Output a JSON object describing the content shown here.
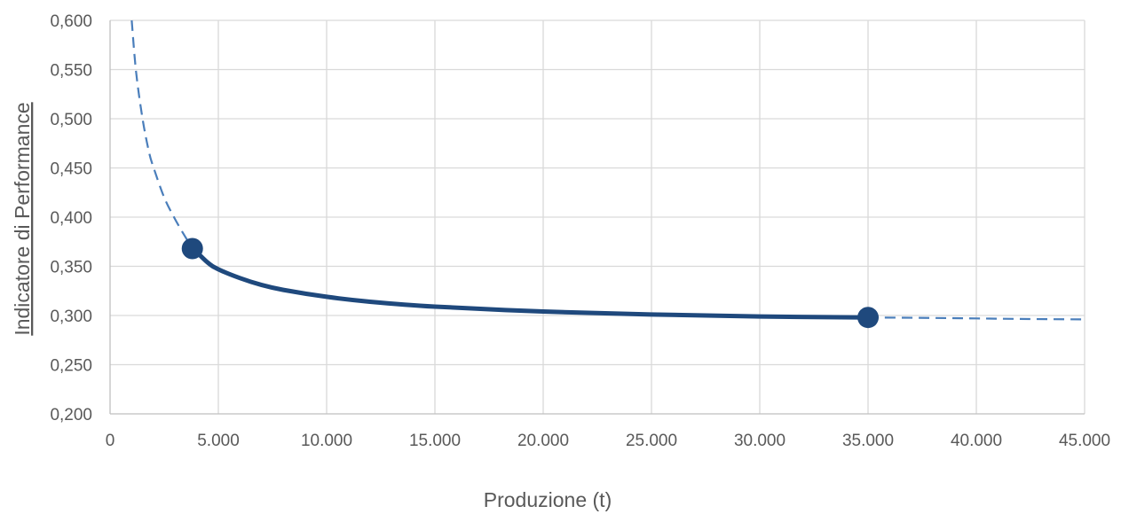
{
  "chart_data": {
    "type": "line",
    "title": "",
    "xlabel": "Produzione (t)",
    "ylabel": "Indicatore di Performance",
    "xlim": [
      0,
      45000
    ],
    "ylim": [
      0.2,
      0.6
    ],
    "x_ticks": [
      "0",
      "5.000",
      "10.000",
      "15.000",
      "20.000",
      "25.000",
      "30.000",
      "35.000",
      "40.000",
      "45.000"
    ],
    "x_tick_values": [
      0,
      5000,
      10000,
      15000,
      20000,
      25000,
      30000,
      35000,
      40000,
      45000
    ],
    "y_ticks": [
      "0,200",
      "0,250",
      "0,300",
      "0,350",
      "0,400",
      "0,450",
      "0,500",
      "0,550",
      "0,600"
    ],
    "y_tick_values": [
      0.2,
      0.25,
      0.3,
      0.35,
      0.4,
      0.45,
      0.5,
      0.55,
      0.6
    ],
    "grid": true,
    "legend": "none",
    "series": [
      {
        "style": "dashed",
        "color": "#4a7ebb",
        "x": [
          1000,
          1200,
          1500,
          1800,
          2000,
          2500,
          3000,
          3500,
          3800
        ],
        "y": [
          0.6,
          0.548,
          0.5,
          0.466,
          0.451,
          0.42,
          0.398,
          0.379,
          0.369
        ]
      },
      {
        "style": "solid",
        "color": "#1f497d",
        "x": [
          3800,
          4500,
          5000,
          6000,
          7000,
          8000,
          10000,
          12000,
          15000,
          20000,
          25000,
          30000,
          35000
        ],
        "y": [
          0.369,
          0.354,
          0.347,
          0.338,
          0.331,
          0.326,
          0.319,
          0.314,
          0.309,
          0.304,
          0.301,
          0.299,
          0.298
        ]
      },
      {
        "style": "dashed",
        "color": "#4a7ebb",
        "x": [
          35000,
          38000,
          40000,
          42000,
          45000
        ],
        "y": [
          0.298,
          0.2975,
          0.297,
          0.2965,
          0.296
        ]
      }
    ],
    "markers": {
      "color": "#1f497d",
      "x": [
        3800,
        35000
      ],
      "y": [
        0.368,
        0.298
      ]
    }
  }
}
